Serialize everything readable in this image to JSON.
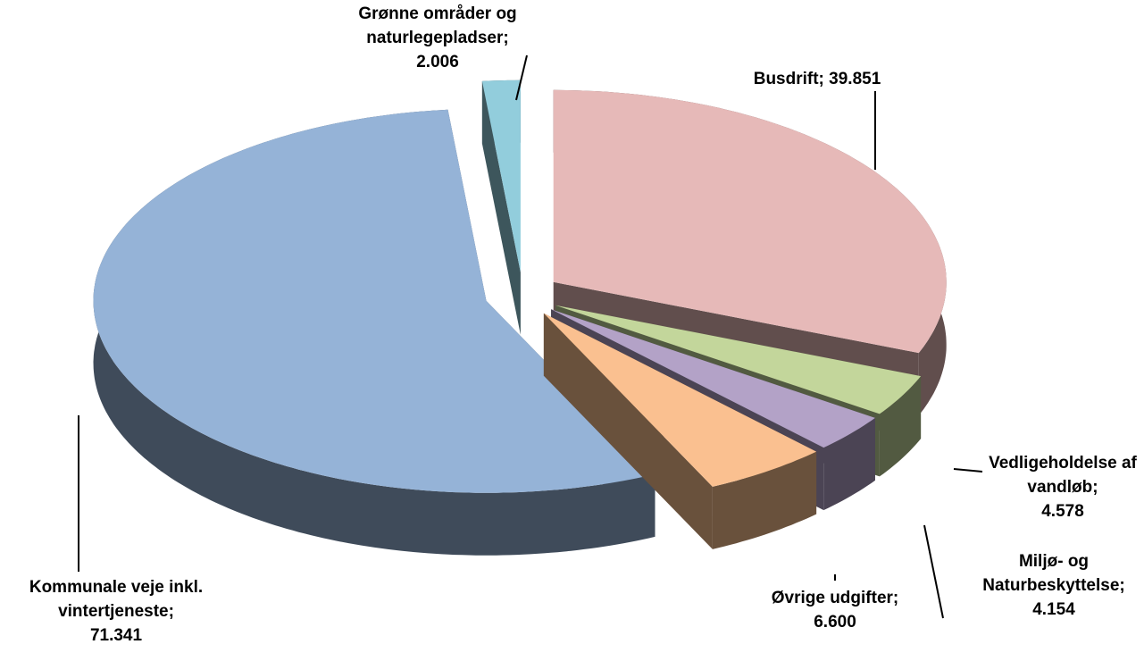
{
  "chart_data": {
    "type": "pie",
    "three_d": true,
    "exploded": true,
    "categories": [
      "Grønne områder og naturlegepladser;",
      "Busdrift;",
      "Vedligeholdelse af vandløb;",
      "Miljø- og Naturbeskyttelse;",
      "Øvrige udgifter;",
      "Kommunale veje inkl. vintertjeneste;"
    ],
    "values": [
      2006,
      39851,
      4578,
      4154,
      6600,
      71341
    ],
    "value_labels": [
      "2.006",
      "39.851",
      "4.578",
      "4.154",
      "6.600",
      "71.341"
    ],
    "colors": [
      "#92cddc",
      "#e6b9b8",
      "#c3d69b",
      "#b3a2c7",
      "#fac090",
      "#95b3d7"
    ]
  }
}
